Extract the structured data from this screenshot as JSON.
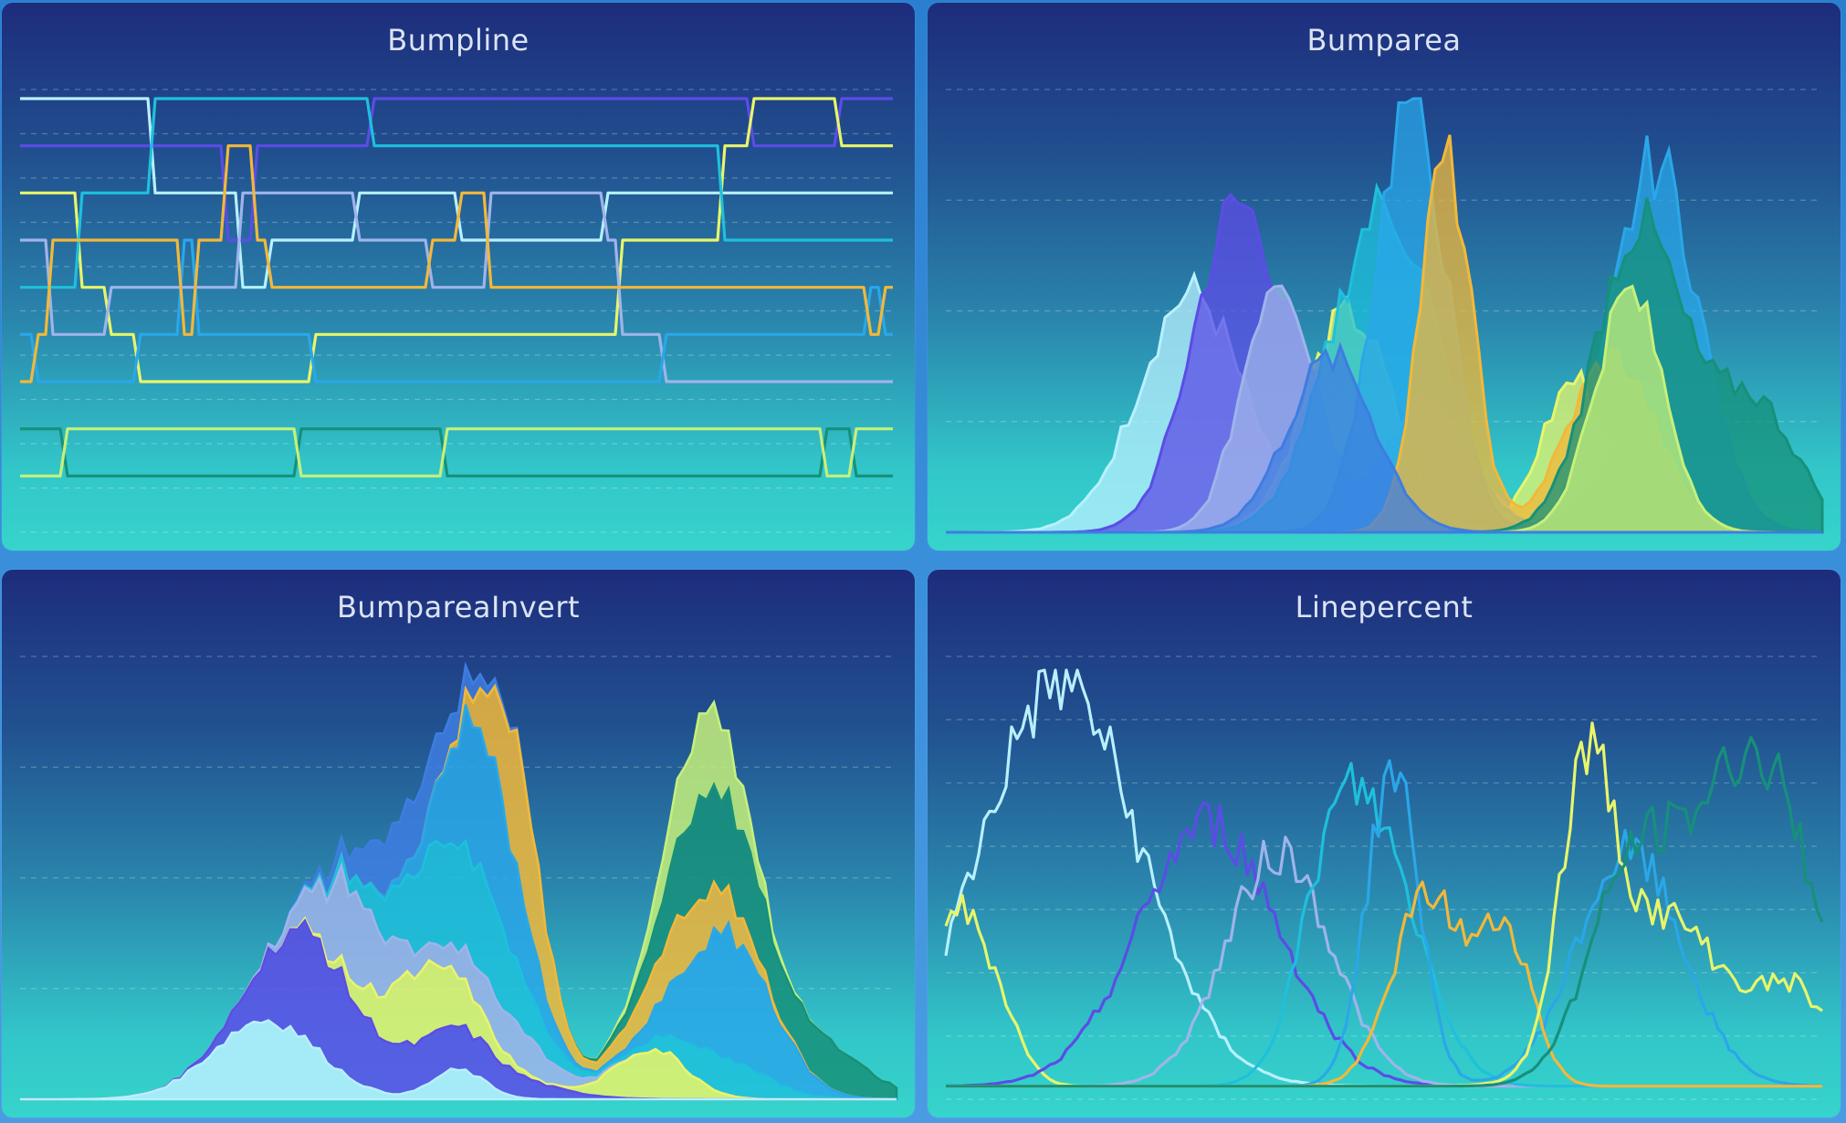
{
  "colors": {
    "palette": [
      "#b8f0ff",
      "#5c4ce6",
      "#e8f56a",
      "#9fb4ea",
      "#1ec0dc",
      "#2aa7e8",
      "#f2b83a",
      "#17907a",
      "#c6f07a",
      "#3e7de0"
    ]
  },
  "chart_data": [
    {
      "type": "line",
      "title": "Bumpline",
      "grid": true,
      "grid_style": "dashed",
      "series_count": 10,
      "ranks": 9
    },
    {
      "type": "area",
      "title": "Bumparea",
      "grid": true,
      "grid_style": "dashed",
      "series_count": 10
    },
    {
      "type": "area",
      "title": "BumpareaInvert",
      "grid": true,
      "grid_style": "dashed",
      "series_count": 10,
      "inverted": true
    },
    {
      "type": "line",
      "title": "Linepercent",
      "grid": true,
      "grid_style": "dashed",
      "series_count": 9
    }
  ]
}
